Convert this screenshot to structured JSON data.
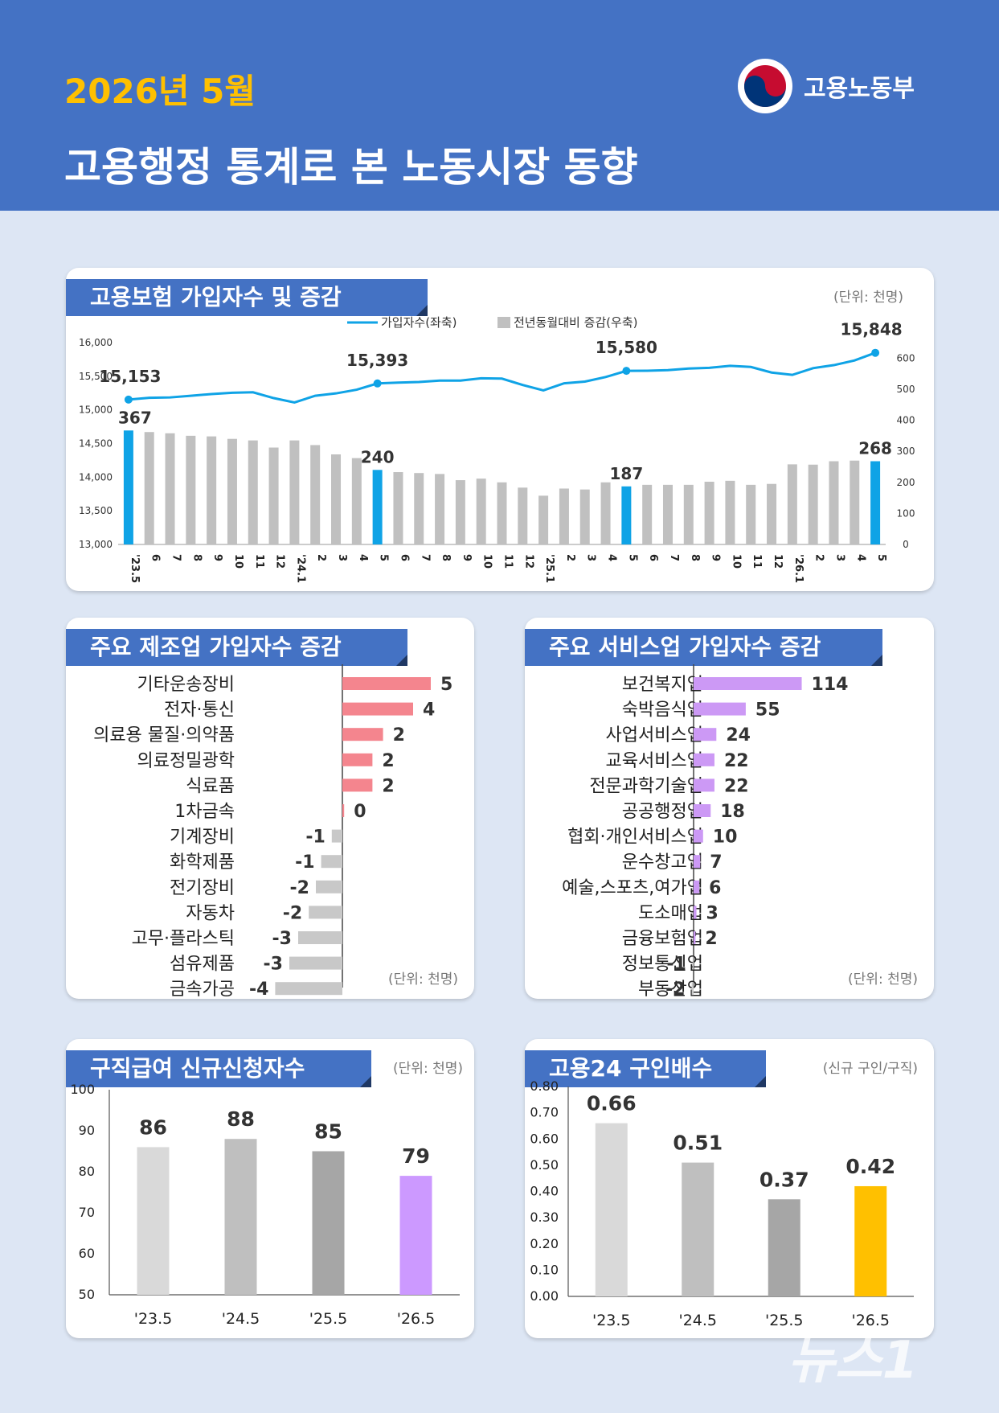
{
  "header": {
    "month": "2026년 5월",
    "title": "고용행정 통계로 본 노동시장 동향",
    "ministry": "고용노동부"
  },
  "colors": {
    "header_bg": "#4472c4",
    "month_text": "#ffc000",
    "highlight_blue": "#0fa3e6",
    "gray_bar": "#c0c0c0",
    "manufacturing_bar": "#f4858e",
    "service_bar": "#cc99f5",
    "claim_2026": "#cc99ff",
    "ratio_2026": "#ffc000"
  },
  "panels": {
    "insurance": {
      "title": "고용보험 가입자수 및 증감",
      "unit": "(단위: 천명)"
    },
    "manufacturing": {
      "title": "주요 제조업 가입자수 증감",
      "unit": "(단위: 천명)"
    },
    "services": {
      "title": "주요 서비스업 가입자수 증감",
      "unit": "(단위: 천명)"
    },
    "claims": {
      "title": "구직급여 신규신청자수",
      "unit": "(단위: 천명)"
    },
    "ratio": {
      "title": "고용24 구인배수",
      "unit": "(신규 구인/구직)"
    }
  },
  "watermark": "뉴스1",
  "chart_data": [
    {
      "type": "bar",
      "title": "고용보험 가입자수 및 증감",
      "legend": [
        "가입자수(좌축)",
        "전년동월대비 증감(우축)"
      ],
      "legend_position": "top-center",
      "categories": [
        "'23.5",
        "6",
        "7",
        "8",
        "9",
        "10",
        "11",
        "12",
        "'24.1",
        "2",
        "3",
        "4",
        "5",
        "6",
        "7",
        "8",
        "9",
        "10",
        "11",
        "12",
        "'25.1",
        "2",
        "3",
        "4",
        "5",
        "6",
        "7",
        "8",
        "9",
        "10",
        "11",
        "12",
        "'26.1",
        "2",
        "3",
        "4",
        "5"
      ],
      "series": [
        {
          "name": "가입자수(좌축)",
          "kind": "line",
          "axis": "left",
          "values": [
            15153,
            15180,
            15185,
            15210,
            15235,
            15255,
            15262,
            15175,
            15110,
            15210,
            15245,
            15300,
            15393,
            15405,
            15415,
            15435,
            15435,
            15470,
            15465,
            15370,
            15290,
            15395,
            15420,
            15488,
            15580,
            15582,
            15590,
            15615,
            15625,
            15655,
            15638,
            15555,
            15520,
            15620,
            15665,
            15735,
            15848
          ],
          "point_labels": {
            "0": "15,153",
            "12": "15,393",
            "24": "15,580",
            "36": "15,848"
          }
        },
        {
          "name": "전년동월대비 증감(우축)",
          "kind": "bar",
          "axis": "right",
          "values": [
            367,
            362,
            358,
            350,
            348,
            340,
            335,
            312,
            335,
            320,
            290,
            278,
            240,
            233,
            230,
            227,
            207,
            212,
            200,
            183,
            157,
            180,
            177,
            200,
            187,
            192,
            192,
            192,
            202,
            205,
            192,
            195,
            258,
            257,
            268,
            270,
            268
          ],
          "bar_labels": {
            "0": "367",
            "12": "240",
            "24": "187",
            "36": "268"
          },
          "highlight_indices": [
            0,
            12,
            24,
            36
          ]
        }
      ],
      "y_left": {
        "min": 13000,
        "max": 16000,
        "ticks": [
          "13,000",
          "13,500",
          "14,000",
          "14,500",
          "15,000",
          "15,500",
          "16,000"
        ]
      },
      "y_right": {
        "min": 0,
        "max": 650,
        "ticks": [
          "0",
          "100",
          "200",
          "300",
          "400",
          "500",
          "600"
        ]
      }
    },
    {
      "type": "bar",
      "orientation": "horizontal",
      "title": "주요 제조업 가입자수 증감",
      "categories": [
        "기타운송장비",
        "전자·통신",
        "의료용 물질·의약품",
        "의료정밀광학",
        "식료품",
        "1차금속",
        "기계장비",
        "화학제품",
        "전기장비",
        "자동차",
        "고무·플라스틱",
        "섬유제품",
        "금속가공"
      ],
      "values": [
        5,
        4,
        2,
        2,
        2,
        0,
        -1,
        -1,
        -2,
        -2,
        -3,
        -3,
        -4
      ],
      "bar_magnitudes": [
        5.0,
        4.0,
        2.3,
        1.7,
        1.7,
        0.1,
        -0.6,
        -1.2,
        -1.5,
        -1.9,
        -2.5,
        -3.0,
        -3.8
      ],
      "labels": [
        "5",
        "4",
        "2",
        "2",
        "2",
        "0",
        "-1",
        "-1",
        "-2",
        "-2",
        "-3",
        "-3",
        "-4"
      ]
    },
    {
      "type": "bar",
      "orientation": "horizontal",
      "title": "주요 서비스업 가입자수 증감",
      "categories": [
        "보건복지업",
        "숙박음식업",
        "사업서비스업",
        "교육서비스업",
        "전문과학기술업",
        "공공행정업",
        "협회·개인서비스업",
        "운수창고업",
        "예술,스포츠,여가업",
        "도소매업",
        "금융보험업",
        "정보통신업",
        "부동산업"
      ],
      "values": [
        114,
        55,
        24,
        22,
        22,
        18,
        10,
        7,
        6,
        3,
        2,
        -1,
        -2
      ],
      "labels": [
        "114",
        "55",
        "24",
        "22",
        "22",
        "18",
        "10",
        "7",
        "6",
        "3",
        "2",
        "-1",
        "-2"
      ]
    },
    {
      "type": "bar",
      "title": "구직급여 신규신청자수",
      "categories": [
        "'23.5",
        "'24.5",
        "'25.5",
        "'26.5"
      ],
      "values": [
        86,
        88,
        85,
        79
      ],
      "labels": [
        "86",
        "88",
        "85",
        "79"
      ],
      "ylim": [
        50,
        100
      ],
      "yticks": [
        "50",
        "60",
        "70",
        "80",
        "90",
        "100"
      ],
      "bar_colors": [
        "#d9d9d9",
        "#bfbfbf",
        "#a6a6a6",
        "#cc99ff"
      ]
    },
    {
      "type": "bar",
      "title": "고용24 구인배수",
      "categories": [
        "'23.5",
        "'24.5",
        "'25.5",
        "'26.5"
      ],
      "values": [
        0.66,
        0.51,
        0.37,
        0.42
      ],
      "labels": [
        "0.66",
        "0.51",
        "0.37",
        "0.42"
      ],
      "ylim": [
        0,
        0.8
      ],
      "yticks": [
        "0.00",
        "0.10",
        "0.20",
        "0.30",
        "0.40",
        "0.50",
        "0.60",
        "0.70",
        "0.80"
      ],
      "bar_colors": [
        "#d9d9d9",
        "#bfbfbf",
        "#a6a6a6",
        "#ffc000"
      ]
    }
  ]
}
